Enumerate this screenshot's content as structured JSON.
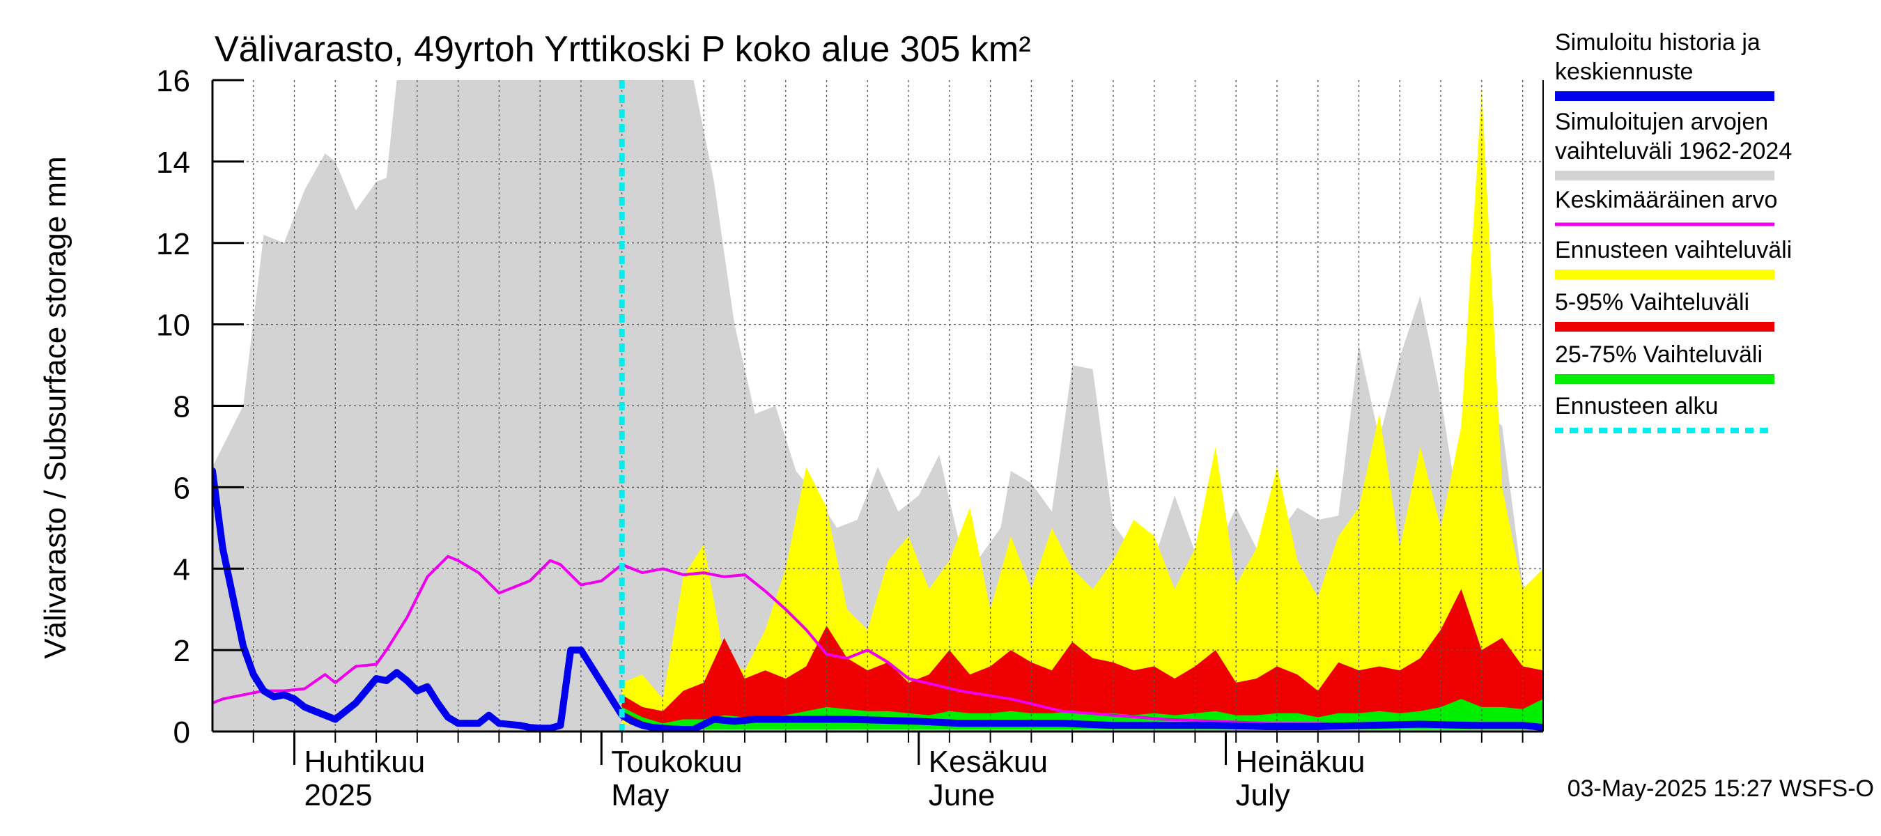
{
  "chart_data": {
    "type": "area",
    "title": "Välivarasto, 49yrtoh Yrttikoski P koko alue 305 km²",
    "ylabel": "Välivarasto / Subsurface storage  mm",
    "xlabel": "",
    "ylim": [
      0,
      16
    ],
    "yticks": [
      0,
      2,
      4,
      6,
      8,
      10,
      12,
      14,
      16
    ],
    "xlim": [
      "2025-03-24",
      "2025-08-01"
    ],
    "forecast_start": "2025-05-03",
    "grid": true,
    "legend_position": "right",
    "month_labels": [
      {
        "fi": "Huhtikuu",
        "en": "2025",
        "date": "2025-04-01"
      },
      {
        "fi": "Toukokuu",
        "en": "May",
        "date": "2025-05-01"
      },
      {
        "fi": "Kesäkuu",
        "en": "June",
        "date": "2025-06-01"
      },
      {
        "fi": "Heinäkuu",
        "en": "July",
        "date": "2025-07-01"
      }
    ],
    "legend": [
      {
        "label_lines": [
          "Simuloitu historia ja",
          "keskiennuste"
        ],
        "color": "#0000ee",
        "style": "thick"
      },
      {
        "label_lines": [
          "Simuloitujen arvojen",
          "vaihteluväli 1962-2024"
        ],
        "color": "#d3d3d3",
        "style": "thick"
      },
      {
        "label_lines": [
          "Keskimääräinen arvo"
        ],
        "color": "#ee00ee",
        "style": "thin"
      },
      {
        "label_lines": [
          "Ennusteen vaihteluväli"
        ],
        "color": "#ffff00",
        "style": "thick"
      },
      {
        "label_lines": [
          "5-95% Vaihteluväli"
        ],
        "color": "#ee0000",
        "style": "thick"
      },
      {
        "label_lines": [
          "25-75% Vaihteluväli"
        ],
        "color": "#00ee00",
        "style": "thick"
      },
      {
        "label_lines": [
          "Ennusteen alku"
        ],
        "color": "#00eeee",
        "style": "dashed"
      }
    ],
    "series": [
      {
        "name": "Simuloitujen arvojen vaihteluväli 1962-2024",
        "color": "#d3d3d3",
        "x": [
          "2025-03-24",
          "2025-03-27",
          "2025-03-29",
          "2025-03-31",
          "2025-04-02",
          "2025-04-04",
          "2025-04-05",
          "2025-04-07",
          "2025-04-09",
          "2025-04-10",
          "2025-04-11",
          "2025-04-13",
          "2025-04-15",
          "2025-04-20",
          "2025-04-25",
          "2025-04-30",
          "2025-05-05",
          "2025-05-10",
          "2025-05-12",
          "2025-05-14",
          "2025-05-16",
          "2025-05-18",
          "2025-05-20",
          "2025-05-22",
          "2025-05-24",
          "2025-05-26",
          "2025-05-28",
          "2025-05-30",
          "2025-06-01",
          "2025-06-03",
          "2025-06-05",
          "2025-06-07",
          "2025-06-09",
          "2025-06-10",
          "2025-06-12",
          "2025-06-14",
          "2025-06-16",
          "2025-06-18",
          "2025-06-20",
          "2025-06-22",
          "2025-06-24",
          "2025-06-26",
          "2025-06-28",
          "2025-06-30",
          "2025-07-02",
          "2025-07-04",
          "2025-07-06",
          "2025-07-08",
          "2025-07-10",
          "2025-07-12",
          "2025-07-14",
          "2025-07-16",
          "2025-07-18",
          "2025-07-20",
          "2025-07-22",
          "2025-07-24",
          "2025-07-26",
          "2025-07-28",
          "2025-07-30",
          "2025-08-01"
        ],
        "low": [
          0,
          0,
          0,
          0,
          0,
          0,
          0,
          0,
          0,
          0,
          0,
          0,
          0,
          0,
          0,
          0,
          0,
          0,
          0,
          0,
          0,
          0,
          0,
          0,
          0,
          0,
          0,
          0,
          0,
          0,
          0,
          0,
          0,
          0,
          0,
          0,
          0,
          0,
          0,
          0,
          0,
          0,
          0,
          0,
          0,
          0,
          0,
          0,
          0,
          0,
          0,
          0,
          0,
          0,
          0,
          0,
          0,
          0,
          0,
          0
        ],
        "high": [
          6.5,
          8.0,
          12.2,
          12.0,
          13.3,
          14.2,
          14.0,
          12.8,
          13.5,
          13.6,
          16.0,
          16.0,
          16.0,
          16.0,
          16.0,
          16.0,
          16.0,
          16.0,
          13.5,
          10.0,
          7.8,
          8.0,
          6.4,
          5.8,
          5.0,
          5.2,
          6.5,
          5.4,
          5.8,
          6.8,
          4.6,
          4.3,
          5.0,
          6.4,
          6.1,
          5.4,
          9.0,
          8.9,
          5.1,
          4.4,
          4.2,
          5.8,
          4.4,
          4.4,
          5.5,
          4.5,
          4.8,
          5.5,
          5.2,
          5.3,
          9.5,
          7.2,
          9.2,
          10.7,
          8.2,
          5.0,
          8.0,
          7.5,
          3.6,
          3.3
        ]
      },
      {
        "name": "Ennusteen vaihteluväli",
        "color": "#ffff00",
        "x": [
          "2025-05-03",
          "2025-05-05",
          "2025-05-07",
          "2025-05-09",
          "2025-05-11",
          "2025-05-13",
          "2025-05-15",
          "2025-05-17",
          "2025-05-19",
          "2025-05-21",
          "2025-05-23",
          "2025-05-25",
          "2025-05-27",
          "2025-05-29",
          "2025-05-31",
          "2025-06-02",
          "2025-06-04",
          "2025-06-06",
          "2025-06-08",
          "2025-06-10",
          "2025-06-12",
          "2025-06-14",
          "2025-06-16",
          "2025-06-18",
          "2025-06-20",
          "2025-06-22",
          "2025-06-24",
          "2025-06-26",
          "2025-06-28",
          "2025-06-30",
          "2025-07-02",
          "2025-07-04",
          "2025-07-06",
          "2025-07-08",
          "2025-07-10",
          "2025-07-12",
          "2025-07-14",
          "2025-07-16",
          "2025-07-18",
          "2025-07-20",
          "2025-07-22",
          "2025-07-24",
          "2025-07-26",
          "2025-07-28",
          "2025-07-30",
          "2025-08-01"
        ],
        "low": [
          0.2,
          0.1,
          0.05,
          0.05,
          0.05,
          0.05,
          0.05,
          0.05,
          0.05,
          0.05,
          0.05,
          0.05,
          0.05,
          0.05,
          0.05,
          0.05,
          0.05,
          0.05,
          0.05,
          0.05,
          0.05,
          0.05,
          0.05,
          0.05,
          0.05,
          0.05,
          0.05,
          0.05,
          0.05,
          0.05,
          0.05,
          0.05,
          0.05,
          0.05,
          0.05,
          0.05,
          0.05,
          0.05,
          0.05,
          0.05,
          0.05,
          0.05,
          0.05,
          0.05,
          0.05,
          0.05
        ],
        "high": [
          1.2,
          1.4,
          0.8,
          3.8,
          4.6,
          1.8,
          1.5,
          2.5,
          4.0,
          6.5,
          5.5,
          3.0,
          2.5,
          4.2,
          4.8,
          3.5,
          4.2,
          5.5,
          3.0,
          4.8,
          3.5,
          5.0,
          4.0,
          3.5,
          4.2,
          5.2,
          4.8,
          3.5,
          4.5,
          7.0,
          3.6,
          4.5,
          6.5,
          4.2,
          3.3,
          4.8,
          5.5,
          7.8,
          4.5,
          7.0,
          5.0,
          7.5,
          15.8,
          6.0,
          3.5,
          4.0
        ]
      },
      {
        "name": "5-95% Vaihteluväli",
        "color": "#ee0000",
        "x": [
          "2025-05-03",
          "2025-05-05",
          "2025-05-07",
          "2025-05-09",
          "2025-05-11",
          "2025-05-13",
          "2025-05-15",
          "2025-05-17",
          "2025-05-19",
          "2025-05-21",
          "2025-05-23",
          "2025-05-25",
          "2025-05-27",
          "2025-05-29",
          "2025-05-31",
          "2025-06-02",
          "2025-06-04",
          "2025-06-06",
          "2025-06-08",
          "2025-06-10",
          "2025-06-12",
          "2025-06-14",
          "2025-06-16",
          "2025-06-18",
          "2025-06-20",
          "2025-06-22",
          "2025-06-24",
          "2025-06-26",
          "2025-06-28",
          "2025-06-30",
          "2025-07-02",
          "2025-07-04",
          "2025-07-06",
          "2025-07-08",
          "2025-07-10",
          "2025-07-12",
          "2025-07-14",
          "2025-07-16",
          "2025-07-18",
          "2025-07-20",
          "2025-07-22",
          "2025-07-24",
          "2025-07-26",
          "2025-07-28",
          "2025-07-30",
          "2025-08-01"
        ],
        "low": [
          0.3,
          0.15,
          0.05,
          0.05,
          0.05,
          0.05,
          0.05,
          0.05,
          0.05,
          0.05,
          0.05,
          0.05,
          0.05,
          0.05,
          0.05,
          0.05,
          0.05,
          0.05,
          0.05,
          0.05,
          0.05,
          0.05,
          0.05,
          0.05,
          0.05,
          0.05,
          0.05,
          0.05,
          0.05,
          0.05,
          0.05,
          0.05,
          0.05,
          0.05,
          0.05,
          0.05,
          0.05,
          0.05,
          0.05,
          0.05,
          0.05,
          0.05,
          0.05,
          0.05,
          0.05,
          0.05
        ],
        "high": [
          0.9,
          0.6,
          0.5,
          1.0,
          1.2,
          2.3,
          1.3,
          1.5,
          1.3,
          1.6,
          2.6,
          1.8,
          1.5,
          1.7,
          1.2,
          1.4,
          2.0,
          1.4,
          1.6,
          2.0,
          1.7,
          1.5,
          2.2,
          1.8,
          1.7,
          1.5,
          1.6,
          1.3,
          1.6,
          2.0,
          1.2,
          1.3,
          1.6,
          1.4,
          1.0,
          1.7,
          1.5,
          1.6,
          1.5,
          1.8,
          2.5,
          3.5,
          2.0,
          2.3,
          1.6,
          1.5
        ]
      },
      {
        "name": "25-75% Vaihteluväli",
        "color": "#00ee00",
        "x": [
          "2025-05-03",
          "2025-05-05",
          "2025-05-07",
          "2025-05-09",
          "2025-05-11",
          "2025-05-13",
          "2025-05-15",
          "2025-05-17",
          "2025-05-19",
          "2025-05-21",
          "2025-05-23",
          "2025-05-25",
          "2025-05-27",
          "2025-05-29",
          "2025-05-31",
          "2025-06-02",
          "2025-06-04",
          "2025-06-06",
          "2025-06-08",
          "2025-06-10",
          "2025-06-12",
          "2025-06-14",
          "2025-06-16",
          "2025-06-18",
          "2025-06-20",
          "2025-06-22",
          "2025-06-24",
          "2025-06-26",
          "2025-06-28",
          "2025-06-30",
          "2025-07-02",
          "2025-07-04",
          "2025-07-06",
          "2025-07-08",
          "2025-07-10",
          "2025-07-12",
          "2025-07-14",
          "2025-07-16",
          "2025-07-18",
          "2025-07-20",
          "2025-07-22",
          "2025-07-24",
          "2025-07-26",
          "2025-07-28",
          "2025-07-30",
          "2025-08-01"
        ],
        "low": [
          0.5,
          0.25,
          0.1,
          0.05,
          0.05,
          0.05,
          0.05,
          0.05,
          0.05,
          0.05,
          0.05,
          0.05,
          0.05,
          0.05,
          0.05,
          0.05,
          0.05,
          0.05,
          0.05,
          0.05,
          0.05,
          0.05,
          0.05,
          0.05,
          0.05,
          0.05,
          0.05,
          0.05,
          0.05,
          0.05,
          0.05,
          0.05,
          0.05,
          0.05,
          0.05,
          0.05,
          0.05,
          0.05,
          0.05,
          0.05,
          0.05,
          0.05,
          0.05,
          0.05,
          0.05,
          0.05
        ],
        "high": [
          0.6,
          0.35,
          0.2,
          0.3,
          0.3,
          0.4,
          0.35,
          0.35,
          0.4,
          0.5,
          0.6,
          0.55,
          0.5,
          0.5,
          0.45,
          0.4,
          0.5,
          0.45,
          0.45,
          0.5,
          0.45,
          0.45,
          0.5,
          0.45,
          0.45,
          0.4,
          0.45,
          0.4,
          0.45,
          0.5,
          0.4,
          0.4,
          0.45,
          0.45,
          0.35,
          0.45,
          0.45,
          0.5,
          0.45,
          0.5,
          0.6,
          0.8,
          0.6,
          0.6,
          0.55,
          0.8
        ]
      },
      {
        "name": "Keskimääräinen arvo",
        "color": "#ee00ee",
        "x": [
          "2025-03-24",
          "2025-03-25",
          "2025-03-27",
          "2025-03-29",
          "2025-03-31",
          "2025-04-02",
          "2025-04-04",
          "2025-04-05",
          "2025-04-07",
          "2025-04-09",
          "2025-04-10",
          "2025-04-12",
          "2025-04-14",
          "2025-04-16",
          "2025-04-17",
          "2025-04-19",
          "2025-04-21",
          "2025-04-23",
          "2025-04-24",
          "2025-04-26",
          "2025-04-27",
          "2025-04-29",
          "2025-05-01",
          "2025-05-03",
          "2025-05-05",
          "2025-05-07",
          "2025-05-09",
          "2025-05-11",
          "2025-05-13",
          "2025-05-15",
          "2025-05-17",
          "2025-05-19",
          "2025-05-21",
          "2025-05-23",
          "2025-05-25",
          "2025-05-27",
          "2025-05-29",
          "2025-05-31",
          "2025-06-05",
          "2025-06-10",
          "2025-06-15",
          "2025-06-20",
          "2025-06-25",
          "2025-06-30",
          "2025-07-05",
          "2025-07-10",
          "2025-07-15",
          "2025-07-20",
          "2025-07-25",
          "2025-07-30",
          "2025-08-01"
        ],
        "values": [
          0.7,
          0.8,
          0.9,
          1.0,
          1.0,
          1.05,
          1.4,
          1.2,
          1.6,
          1.65,
          2.0,
          2.8,
          3.8,
          4.3,
          4.2,
          3.9,
          3.4,
          3.6,
          3.7,
          4.2,
          4.1,
          3.6,
          3.7,
          4.1,
          3.9,
          4.0,
          3.85,
          3.9,
          3.8,
          3.85,
          3.45,
          3.0,
          2.5,
          1.9,
          1.8,
          2.0,
          1.7,
          1.3,
          1.0,
          0.8,
          0.5,
          0.4,
          0.3,
          0.25,
          0.2,
          0.2,
          0.15,
          0.15,
          0.1,
          0.1,
          0.1
        ]
      },
      {
        "name": "Simuloitu historia ja keskiennuste",
        "color": "#0000ee",
        "x": [
          "2025-03-24",
          "2025-03-25",
          "2025-03-27",
          "2025-03-28",
          "2025-03-29",
          "2025-03-30",
          "2025-03-31",
          "2025-04-01",
          "2025-04-02",
          "2025-04-03",
          "2025-04-05",
          "2025-04-07",
          "2025-04-09",
          "2025-04-10",
          "2025-04-11",
          "2025-04-12",
          "2025-04-13",
          "2025-04-14",
          "2025-04-15",
          "2025-04-16",
          "2025-04-17",
          "2025-04-18",
          "2025-04-19",
          "2025-04-20",
          "2025-04-21",
          "2025-04-23",
          "2025-04-24",
          "2025-04-25",
          "2025-04-26",
          "2025-04-27",
          "2025-04-28",
          "2025-04-29",
          "2025-04-30",
          "2025-05-01",
          "2025-05-02",
          "2025-05-03",
          "2025-05-04",
          "2025-05-05",
          "2025-05-06",
          "2025-05-07",
          "2025-05-08",
          "2025-05-09",
          "2025-05-10",
          "2025-05-12",
          "2025-05-14",
          "2025-05-16",
          "2025-05-18",
          "2025-05-20",
          "2025-05-25",
          "2025-06-01",
          "2025-06-05",
          "2025-06-10",
          "2025-06-15",
          "2025-06-20",
          "2025-06-25",
          "2025-06-30",
          "2025-07-05",
          "2025-07-10",
          "2025-07-15",
          "2025-07-20",
          "2025-07-25",
          "2025-07-30",
          "2025-08-01"
        ],
        "values": [
          6.4,
          4.5,
          2.1,
          1.4,
          1.0,
          0.85,
          0.9,
          0.8,
          0.6,
          0.5,
          0.3,
          0.7,
          1.3,
          1.25,
          1.45,
          1.25,
          1.0,
          1.1,
          0.7,
          0.35,
          0.2,
          0.2,
          0.2,
          0.4,
          0.2,
          0.15,
          0.1,
          0.08,
          0.08,
          0.15,
          2.0,
          2.0,
          1.6,
          1.2,
          0.8,
          0.4,
          0.25,
          0.15,
          0.1,
          0.08,
          0.06,
          0.05,
          0.05,
          0.3,
          0.25,
          0.3,
          0.3,
          0.3,
          0.3,
          0.25,
          0.2,
          0.2,
          0.2,
          0.15,
          0.15,
          0.15,
          0.12,
          0.12,
          0.15,
          0.18,
          0.15,
          0.15,
          0.1
        ]
      }
    ]
  },
  "footer": {
    "timestamp": "03-May-2025 15:27 WSFS-O"
  }
}
